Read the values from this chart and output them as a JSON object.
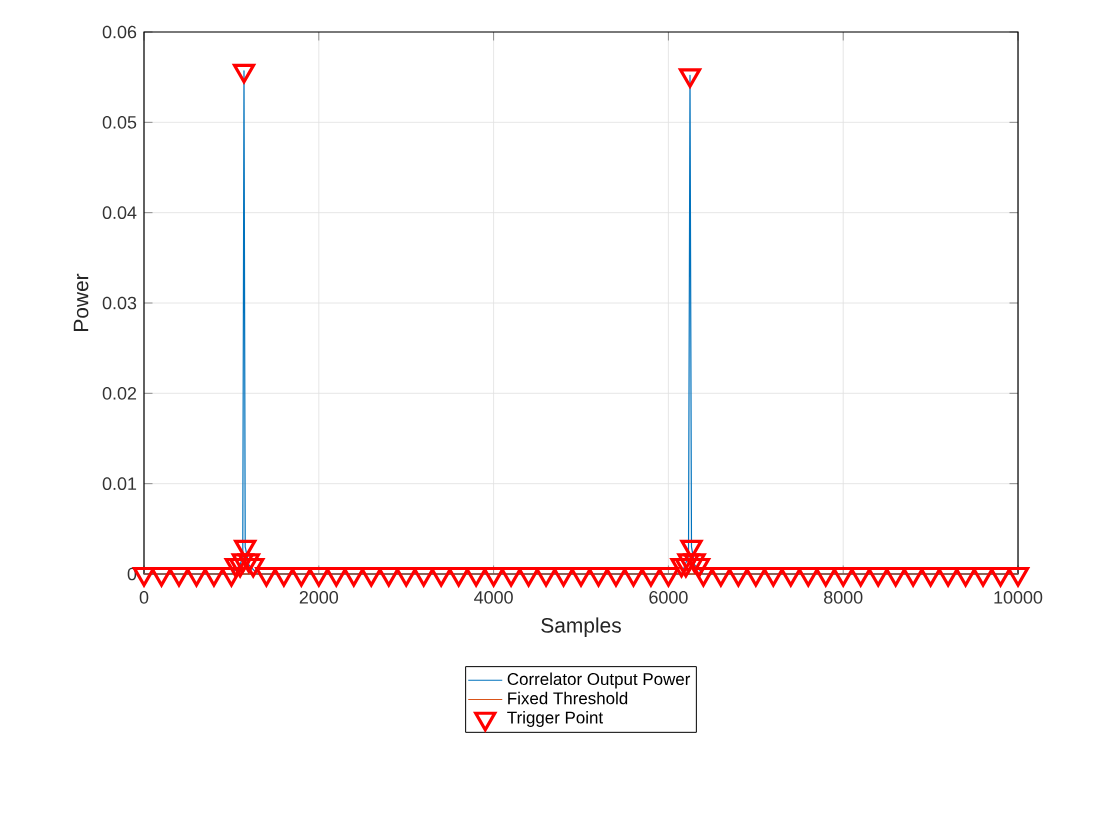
{
  "chart_data": {
    "type": "line",
    "xlabel": "Samples",
    "ylabel": "Power",
    "xlim": [
      0,
      10000
    ],
    "ylim": [
      0,
      0.06
    ],
    "xticks": [
      0,
      2000,
      4000,
      6000,
      8000,
      10000
    ],
    "yticks": [
      0,
      0.01,
      0.02,
      0.03,
      0.04,
      0.05,
      0.06
    ],
    "grid": true,
    "legend": "bottom",
    "series": [
      {
        "name": "Correlator Output Power",
        "color": "#0072bd",
        "marker": "none",
        "line_style": "solid",
        "x": [
          0,
          1000,
          1100,
          1130,
          1144,
          1158,
          1200,
          1300,
          6150,
          6230,
          6247,
          6264,
          6300,
          6400,
          10000
        ],
        "values": [
          0,
          0,
          0.001,
          0.002,
          0.0557,
          0.003,
          0.001,
          0,
          0,
          0.002,
          0.0552,
          0.003,
          0.001,
          0,
          0
        ]
      },
      {
        "name": "Fixed Threshold",
        "color": "#d95319",
        "marker": "none",
        "line_style": "solid",
        "x": [
          0,
          10000
        ],
        "values": [
          0,
          0
        ]
      },
      {
        "name": "Trigger Point",
        "type": "scatter",
        "color": "#ff0000",
        "marker": "triangle",
        "x": [
          0,
          200,
          400,
          600,
          800,
          1000,
          1050,
          1100,
          1130,
          1144,
          1158,
          1200,
          1250,
          1400,
          1600,
          1800,
          2000,
          2200,
          2400,
          2600,
          2800,
          3000,
          3200,
          3400,
          3600,
          3800,
          4000,
          4200,
          4400,
          4600,
          4800,
          5000,
          5200,
          5400,
          5600,
          5800,
          6000,
          6150,
          6200,
          6230,
          6247,
          6264,
          6300,
          6350,
          6400,
          6600,
          6800,
          7000,
          7200,
          7400,
          7600,
          7800,
          8000,
          8200,
          8400,
          8600,
          8800,
          9000,
          9200,
          9400,
          9600,
          9800,
          10000
        ],
        "values": [
          0,
          0,
          0,
          0,
          0,
          0,
          0.001,
          0.001,
          0.0015,
          0.0557,
          0.003,
          0.0015,
          0.001,
          0,
          0,
          0,
          0,
          0,
          0,
          0,
          0,
          0,
          0,
          0,
          0,
          0,
          0,
          0,
          0,
          0,
          0,
          0,
          0,
          0,
          0,
          0,
          0,
          0.001,
          0.001,
          0.0015,
          0.0552,
          0.003,
          0.0015,
          0.001,
          0,
          0,
          0,
          0,
          0,
          0,
          0,
          0,
          0,
          0,
          0,
          0,
          0,
          0,
          0,
          0,
          0,
          0,
          0
        ]
      }
    ]
  }
}
